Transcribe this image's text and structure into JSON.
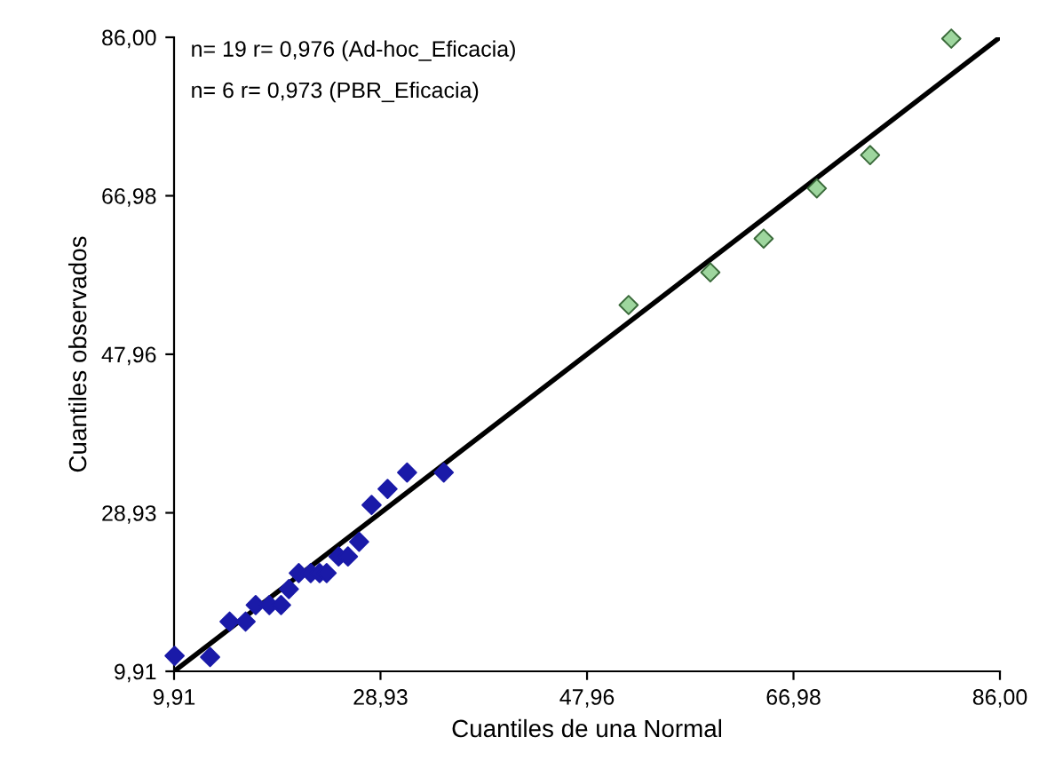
{
  "chart_data": {
    "type": "scatter",
    "xlabel": "Cuantiles de una Normal",
    "ylabel": "Cuantiles observados",
    "annotations": [
      "n= 19 r= 0,976 (Ad-hoc_Eficacia)",
      "n= 6 r= 0,973 (PBR_Eficacia)"
    ],
    "xlim": [
      9.91,
      86.0
    ],
    "ylim": [
      9.91,
      86.0
    ],
    "xticks": [
      {
        "value": 9.91,
        "label": "9,91"
      },
      {
        "value": 28.93,
        "label": "28,93"
      },
      {
        "value": 47.96,
        "label": "47,96"
      },
      {
        "value": 66.98,
        "label": "66,98"
      },
      {
        "value": 86.0,
        "label": "86,00"
      }
    ],
    "yticks": [
      {
        "value": 9.91,
        "label": "9,91"
      },
      {
        "value": 28.93,
        "label": "28,93"
      },
      {
        "value": 47.96,
        "label": "47,96"
      },
      {
        "value": 66.98,
        "label": "66,98"
      },
      {
        "value": 86.0,
        "label": "86,00"
      }
    ],
    "grid": false,
    "legend": false,
    "marker": "diamond",
    "series": [
      {
        "color": "#1a1aa8",
        "x": [
          9.96,
          13.23,
          15.03,
          16.5,
          17.43,
          18.69,
          19.77,
          20.49,
          21.4,
          22.5,
          23.32,
          23.97,
          25.07,
          25.93,
          26.96,
          28.11,
          29.58,
          31.38,
          34.76
        ],
        "values": [
          11.77,
          11.62,
          15.88,
          15.88,
          17.86,
          17.86,
          17.86,
          19.78,
          21.7,
          21.7,
          21.7,
          21.7,
          23.69,
          23.69,
          25.46,
          29.87,
          31.79,
          33.77,
          33.77
        ]
      },
      {
        "color": "#9ed69e",
        "x": [
          51.79,
          59.32,
          64.23,
          69.13,
          74.04,
          81.52
        ],
        "values": [
          53.87,
          57.79,
          61.84,
          67.87,
          71.86,
          85.84
        ]
      },
      {
        "type": "line",
        "color": "#000000",
        "marker": "none",
        "x": [
          9.91,
          86.0
        ],
        "values": [
          9.91,
          86.0
        ]
      }
    ]
  }
}
